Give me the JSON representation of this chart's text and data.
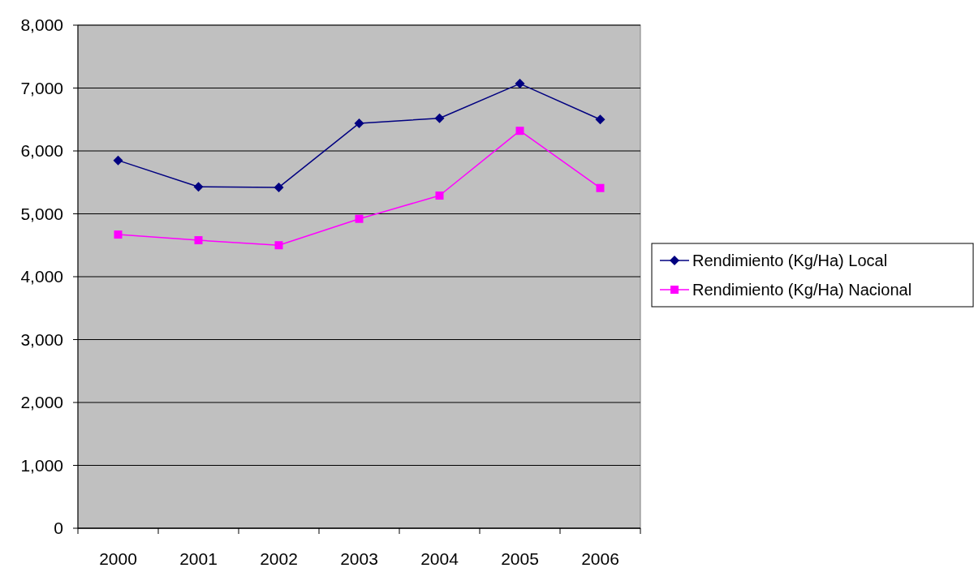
{
  "chart_data": {
    "type": "line",
    "categories": [
      "2000",
      "2001",
      "2002",
      "2003",
      "2004",
      "2005",
      "2006"
    ],
    "series": [
      {
        "name": "Rendimiento (Kg/Ha) Local",
        "color": "#000080",
        "marker": "diamond",
        "values": [
          5850,
          5430,
          5420,
          6440,
          6520,
          7070,
          6500
        ]
      },
      {
        "name": "Rendimiento (Kg/Ha) Nacional",
        "color": "#ff00ff",
        "marker": "square",
        "values": [
          4670,
          4580,
          4500,
          4920,
          5290,
          6320,
          5410
        ]
      }
    ],
    "ylim": [
      0,
      8000
    ],
    "yticks": [
      0,
      {
        "value": 1000,
        "label": "1,000"
      },
      {
        "value": 2000,
        "label": "2,000"
      },
      {
        "value": 3000,
        "label": "3,000"
      },
      {
        "value": 4000,
        "label": "4,000"
      },
      {
        "value": 5000,
        "label": "5,000"
      },
      {
        "value": 6000,
        "label": "6,000"
      },
      {
        "value": 7000,
        "label": "7,000"
      },
      {
        "value": 8000,
        "label": "8,000"
      }
    ],
    "grid": "y",
    "legend": "right"
  }
}
